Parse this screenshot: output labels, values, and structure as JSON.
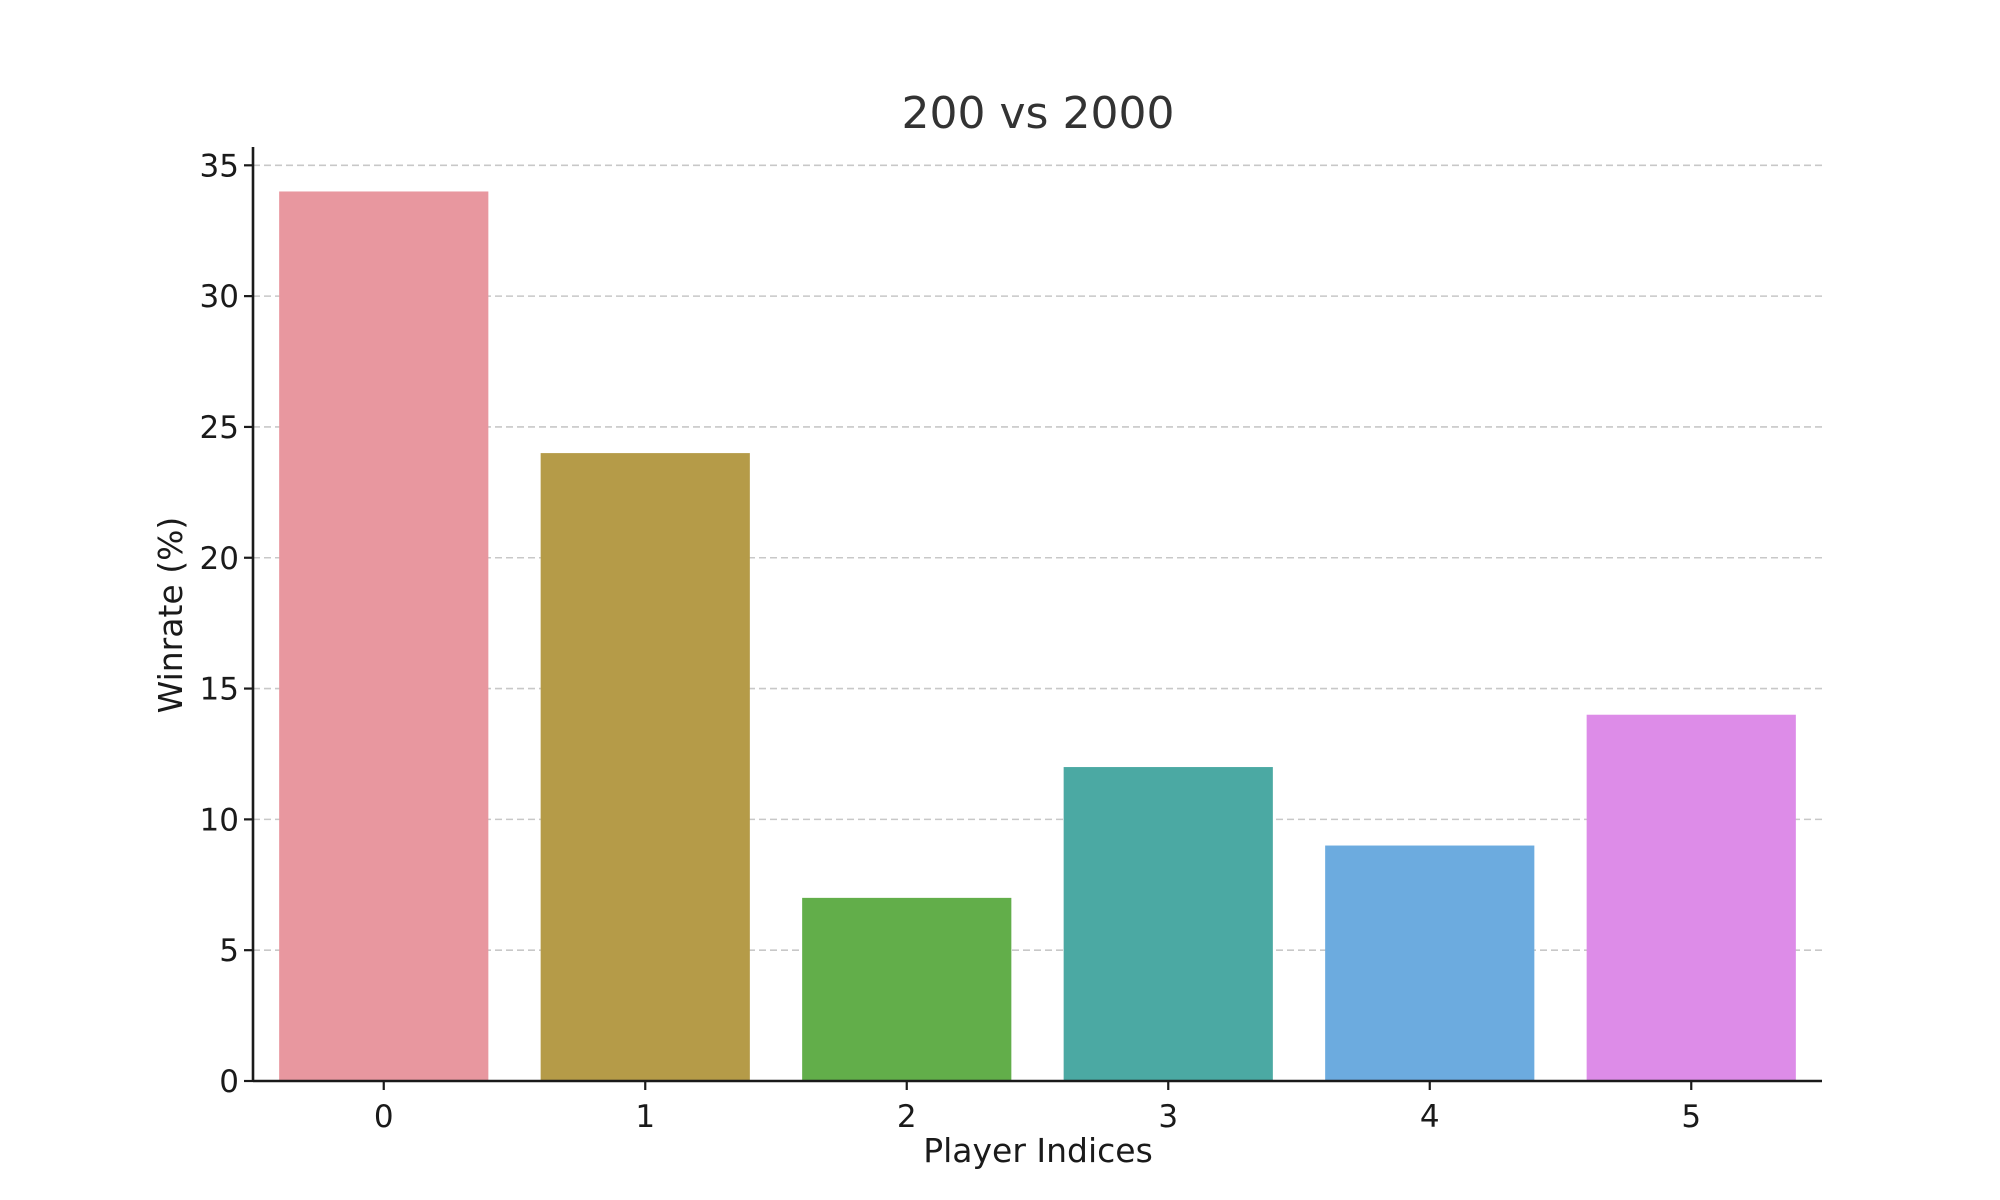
{
  "chart_data": {
    "type": "bar",
    "title": "200 vs 2000",
    "xlabel": "Player Indices",
    "ylabel": "Winrate (%)",
    "categories": [
      "0",
      "1",
      "2",
      "3",
      "4",
      "5"
    ],
    "values": [
      34,
      24,
      7,
      12,
      9,
      14
    ],
    "colors": [
      "#e8979f",
      "#b59b48",
      "#62ae4a",
      "#4ba9a3",
      "#6cabdf",
      "#dd8ce8"
    ],
    "ylim": [
      0,
      35.7
    ],
    "yticks": [
      0,
      5,
      10,
      15,
      20,
      25,
      30,
      35
    ],
    "grid": true,
    "grid_axis": "y",
    "legend": "none"
  }
}
